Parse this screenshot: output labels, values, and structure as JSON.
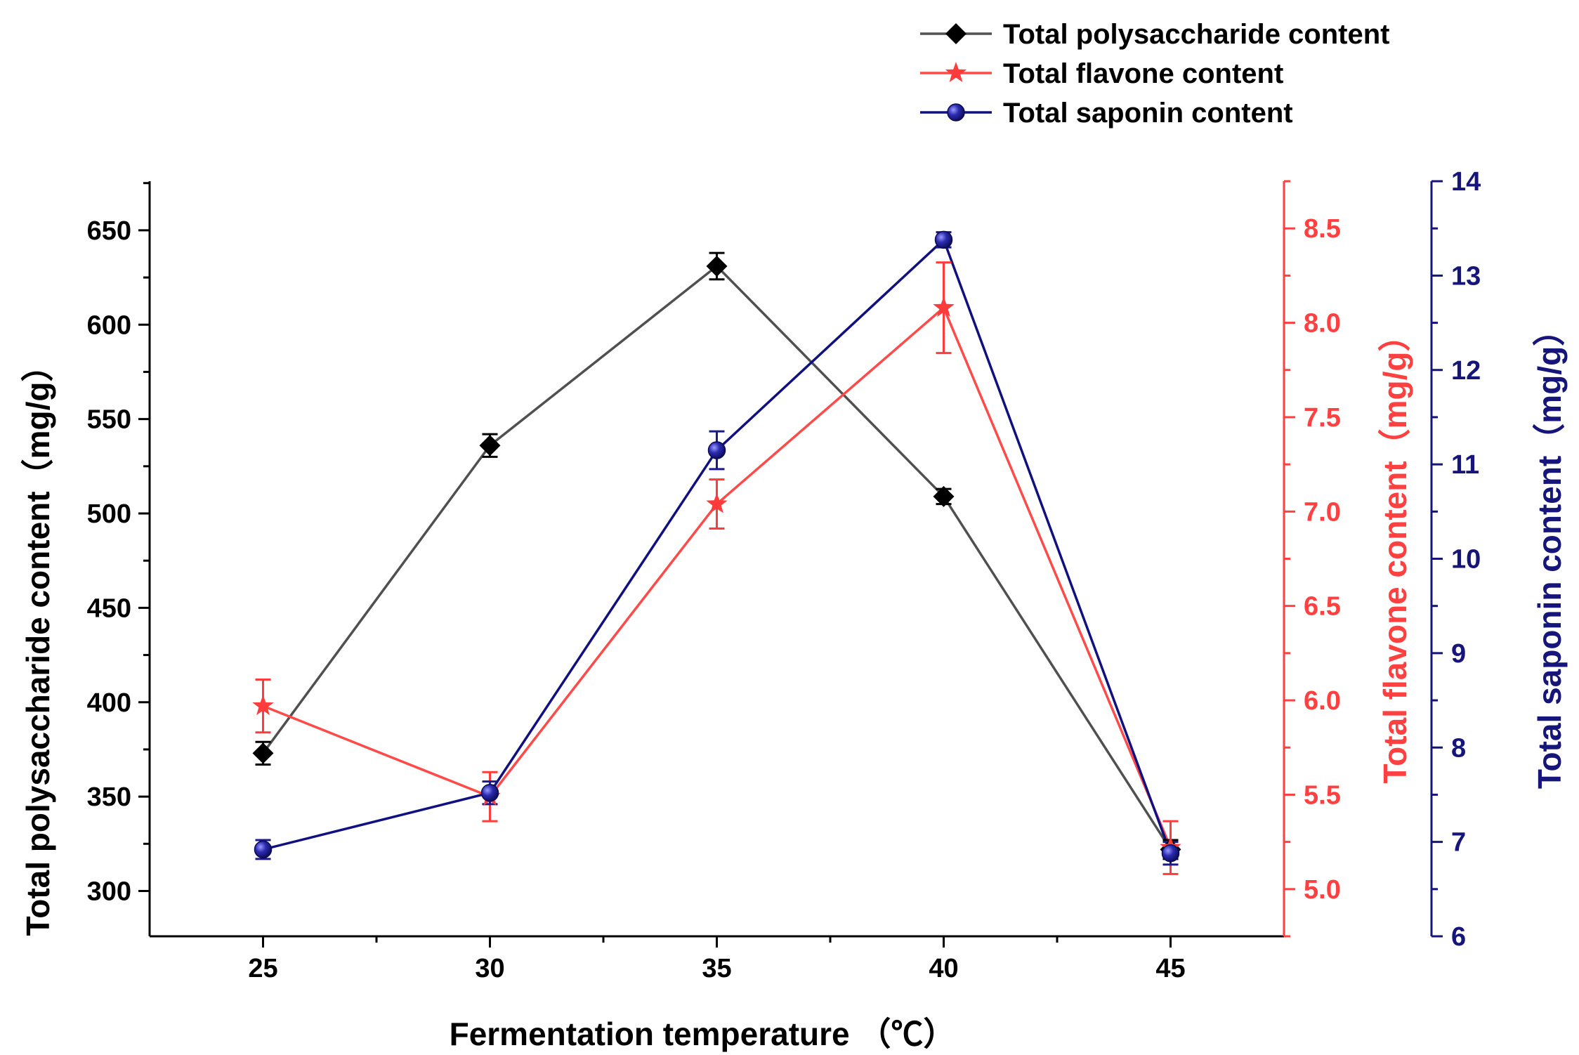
{
  "chart_data": {
    "type": "line",
    "x": [
      25,
      30,
      35,
      40,
      45
    ],
    "xlabel": "Fermentation temperature （℃）",
    "xlim": [
      22.5,
      47.5
    ],
    "series": [
      {
        "name": "Total polysaccharide content",
        "axis": "left",
        "color": "#000000",
        "line_color": "#505050",
        "marker": "diamond",
        "values": [
          373,
          536,
          631,
          509,
          322
        ],
        "errors": [
          6,
          6,
          7,
          4,
          5
        ]
      },
      {
        "name": "Total flavone content",
        "axis": "right1",
        "color": "#ff3b3b",
        "line_color": "#ff4a4a",
        "marker": "star",
        "values": [
          5.97,
          5.49,
          7.04,
          8.08,
          5.22
        ],
        "errors": [
          0.14,
          0.13,
          0.13,
          0.24,
          0.14
        ]
      },
      {
        "name": "Total saponin content",
        "axis": "right2",
        "color": "#1a1a8c",
        "line_color": "#101080",
        "marker": "sphere",
        "values": [
          6.92,
          7.52,
          11.15,
          13.38,
          6.88
        ],
        "errors": [
          0.1,
          0.12,
          0.2,
          0.08,
          0.12
        ]
      }
    ],
    "axes": {
      "left": {
        "label": "Total polysaccharide content（mg/g）",
        "ylim": [
          276,
          676
        ],
        "ticks": [
          300,
          350,
          400,
          450,
          500,
          550,
          600,
          650
        ],
        "minor_step": 25,
        "color": "#000000"
      },
      "right1": {
        "label": "Total flavone content（mg/g）",
        "ylim": [
          4.75,
          8.75
        ],
        "ticks": [
          5.0,
          5.5,
          6.0,
          6.5,
          7.0,
          7.5,
          8.0,
          8.5
        ],
        "minor_step": 0.25,
        "tick_decimals": 1,
        "color": "#ff4040"
      },
      "right2": {
        "label": "Total saponin content（mg/g）",
        "ylim": [
          6,
          14
        ],
        "ticks": [
          6,
          7,
          8,
          9,
          10,
          11,
          12,
          13,
          14
        ],
        "minor_step": 0.5,
        "color": "#15157a"
      }
    },
    "legend": {
      "placement": "top-right",
      "entries": [
        "Total polysaccharide content",
        "Total flavone content",
        "Total saponin content"
      ]
    }
  }
}
